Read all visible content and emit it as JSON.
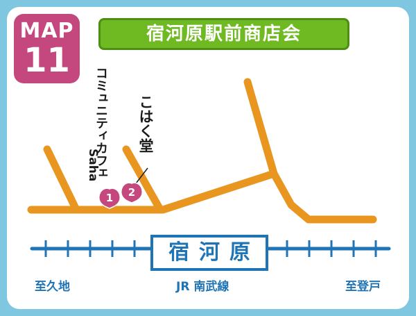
{
  "badge": {
    "map": "MAP",
    "number": "11"
  },
  "title": "宿河原駅前商店会",
  "landmarks": [
    {
      "number": "1",
      "name": "コミュニティカフェ Saha",
      "name_line1": "コミュニティカフェ",
      "name_line2": "Saha"
    },
    {
      "number": "2",
      "name": "こはく堂"
    }
  ],
  "station": {
    "name": "宿河原"
  },
  "railway": {
    "line": "JR 南武線",
    "west": "至久地",
    "east": "至登戸"
  },
  "colors": {
    "road": "#e8961f",
    "rail": "#1f74b5",
    "pin": "#c4477e",
    "banner": "#6fb922",
    "frame": "#7fc6e0"
  }
}
